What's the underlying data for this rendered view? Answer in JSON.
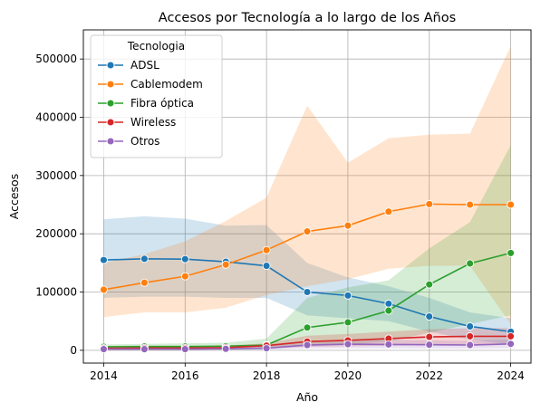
{
  "chart_data": {
    "type": "line",
    "title": "Accesos por Tecnología a lo largo de los Años",
    "xlabel": "Año",
    "ylabel": "Accesos",
    "x": [
      2014,
      2015,
      2016,
      2017,
      2018,
      2019,
      2020,
      2021,
      2022,
      2023,
      2024
    ],
    "xlim": [
      2013.5,
      2024.5
    ],
    "ylim": [
      -22000,
      550000
    ],
    "x_ticks": [
      2014,
      2016,
      2018,
      2020,
      2022,
      2024
    ],
    "y_ticks": [
      0,
      100000,
      200000,
      300000,
      400000,
      500000
    ],
    "grid": true,
    "legend": {
      "title": "Tecnologia",
      "placement": "top-left"
    },
    "series": [
      {
        "name": "ADSL",
        "color": "#1f77b4",
        "values": [
          155000,
          157000,
          156500,
          152000,
          145000,
          100000,
          94000,
          80000,
          58000,
          41000,
          32000
        ],
        "band_low": [
          90000,
          92000,
          92000,
          90000,
          90000,
          60000,
          55000,
          50000,
          32000,
          18000,
          10000
        ],
        "band_high": [
          225000,
          230000,
          226000,
          214000,
          215000,
          150000,
          125000,
          110000,
          90000,
          65000,
          55000
        ]
      },
      {
        "name": "Cablemodem",
        "color": "#ff7f0e",
        "values": [
          104000,
          116000,
          127000,
          147000,
          172000,
          204000,
          214000,
          238000,
          251000,
          250000,
          250000
        ],
        "band_low": [
          57000,
          65000,
          65000,
          73000,
          95000,
          110000,
          122000,
          140000,
          145000,
          145000,
          45000
        ],
        "band_high": [
          150000,
          165000,
          187000,
          222000,
          262000,
          420000,
          322000,
          364000,
          370000,
          372000,
          522000
        ]
      },
      {
        "name": "Fibra óptica",
        "color": "#2ca02c",
        "values": [
          6000,
          6500,
          6500,
          7000,
          9000,
          39000,
          48000,
          68000,
          113000,
          149000,
          167000
        ],
        "band_low": [
          2000,
          2000,
          2000,
          2000,
          3000,
          8000,
          10000,
          15000,
          30000,
          45000,
          60000
        ],
        "band_high": [
          10000,
          11000,
          12000,
          13000,
          20000,
          90000,
          108000,
          120000,
          175000,
          220000,
          352000
        ]
      },
      {
        "name": "Wireless",
        "color": "#d62728",
        "values": [
          3500,
          4000,
          4000,
          4500,
          8000,
          15000,
          17000,
          20000,
          23000,
          24000,
          24000
        ],
        "band_low": [
          1000,
          1000,
          1000,
          1500,
          3000,
          6000,
          7000,
          8000,
          10000,
          10000,
          10000
        ],
        "band_high": [
          6000,
          7000,
          7000,
          8000,
          12000,
          25000,
          28000,
          32000,
          36000,
          38000,
          38000
        ]
      },
      {
        "name": "Otros",
        "color": "#9467bd",
        "values": [
          2000,
          2000,
          2000,
          2500,
          3500,
          9000,
          10500,
          10000,
          9500,
          9000,
          11000
        ],
        "band_low": [
          500,
          500,
          500,
          500,
          1000,
          3000,
          3500,
          3500,
          3000,
          3000,
          3500
        ],
        "band_high": [
          4000,
          4000,
          4000,
          5000,
          7000,
          16000,
          18000,
          18000,
          17000,
          16000,
          19000
        ]
      }
    ]
  }
}
